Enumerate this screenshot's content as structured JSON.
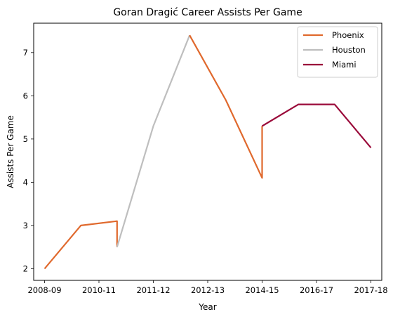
{
  "chart_data": {
    "type": "line",
    "title": "Goran Dragić Career Assists Per Game",
    "xlabel": "Year",
    "ylabel": "Assists Per Game",
    "x_ticks": [
      "2008-09",
      "2010-11",
      "2011-12",
      "2012-13",
      "2014-15",
      "2016-17",
      "2017-18"
    ],
    "xlim": [
      -0.3,
      9.3
    ],
    "y_ticks": [
      "2",
      "3",
      "4",
      "5",
      "6",
      "7"
    ],
    "ylim": [
      1.73,
      7.68
    ],
    "grid": false,
    "legend_position": "top-right",
    "series": [
      {
        "name": "Phoenix",
        "color": "#e0692d",
        "x": [
          0,
          1,
          2,
          2
        ],
        "y": [
          2.0,
          3.0,
          3.1,
          2.5
        ]
      },
      {
        "name": "Houston",
        "color": "#bebebe",
        "x": [
          2,
          3,
          4
        ],
        "y": [
          2.5,
          5.3,
          7.4
        ]
      },
      {
        "name": "Phoenix",
        "color": "#e0692d",
        "x": [
          4,
          5,
          6,
          6
        ],
        "y": [
          7.4,
          5.9,
          4.1,
          5.3
        ]
      },
      {
        "name": "Miami",
        "color": "#9a0a3a",
        "x": [
          6,
          7,
          8,
          9
        ],
        "y": [
          5.3,
          5.8,
          5.8,
          4.8
        ]
      }
    ],
    "legend": [
      {
        "label": "Phoenix",
        "color": "#e0692d"
      },
      {
        "label": "Houston",
        "color": "#bebebe"
      },
      {
        "label": "Miami",
        "color": "#9a0a3a"
      }
    ]
  }
}
